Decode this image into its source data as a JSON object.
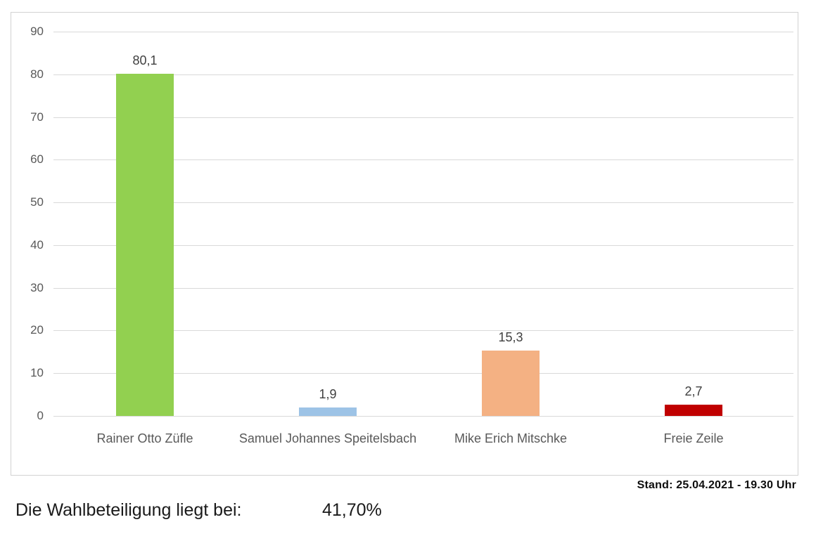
{
  "chart_data": {
    "type": "bar",
    "categories": [
      "Rainer Otto Züfle",
      "Samuel Johannes Speitelsbach",
      "Mike Erich Mitschke",
      "Freie Zeile"
    ],
    "values": [
      80.1,
      1.9,
      15.3,
      2.7
    ],
    "value_labels": [
      "80,1",
      "1,9",
      "15,3",
      "2,7"
    ],
    "bar_colors": [
      "#92d050",
      "#9dc3e6",
      "#f4b183",
      "#c00000"
    ],
    "title": "",
    "xlabel": "",
    "ylabel": "",
    "ylim": [
      0,
      90
    ],
    "yticks": [
      0,
      10,
      20,
      30,
      40,
      50,
      60,
      70,
      80,
      90
    ],
    "grid": true,
    "legend": false
  },
  "colors": {
    "gridline": "#d9d9d9",
    "axis_text": "#595959",
    "data_label_text": "#404040",
    "frame_border": "#d2d2d2"
  },
  "footer": {
    "stand": "Stand: 25.04.2021 - 19.30 Uhr",
    "turnout_label": "Die Wahlbeteiligung liegt bei:",
    "turnout_value": "41,70%"
  }
}
